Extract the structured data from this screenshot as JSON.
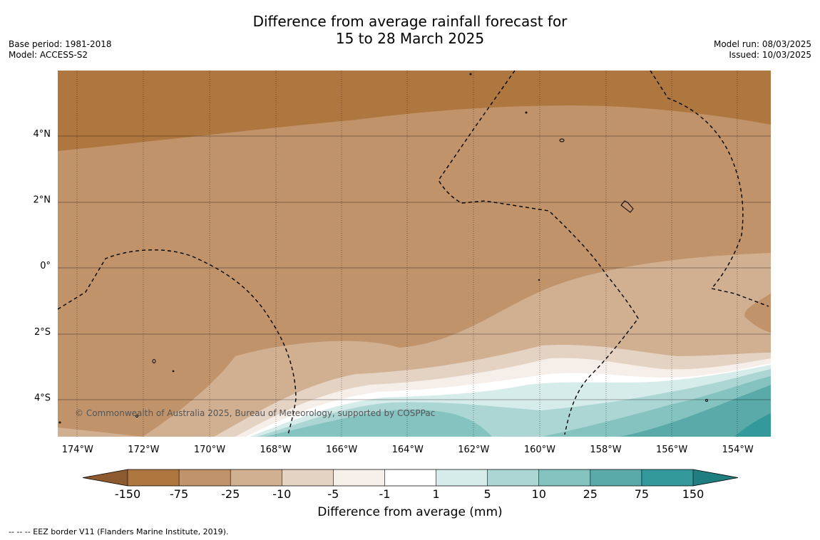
{
  "title": {
    "line1": "Difference from average rainfall forecast for",
    "line2": "15 to 28 March 2025"
  },
  "meta_left": {
    "base_period": "Base period: 1981-2018",
    "model": "Model: ACCESS-S2"
  },
  "meta_right": {
    "model_run": "Model run: 08/03/2025",
    "issued": "Issued: 10/03/2025"
  },
  "map": {
    "copyright": "© Commonwealth of Australia 2025, Bureau of Meteorology, supported by COSPPac",
    "lon_ticks": [
      {
        "value": -174,
        "label": "174°W"
      },
      {
        "value": -172,
        "label": "172°W"
      },
      {
        "value": -170,
        "label": "170°W"
      },
      {
        "value": -168,
        "label": "168°W"
      },
      {
        "value": -166,
        "label": "166°W"
      },
      {
        "value": -164,
        "label": "164°W"
      },
      {
        "value": -162,
        "label": "162°W"
      },
      {
        "value": -160,
        "label": "160°W"
      },
      {
        "value": -158,
        "label": "158°W"
      },
      {
        "value": -156,
        "label": "156°W"
      },
      {
        "value": -154,
        "label": "154°W"
      }
    ],
    "lat_ticks": [
      {
        "value": 4,
        "label": "4°N"
      },
      {
        "value": 2,
        "label": "2°N"
      },
      {
        "value": 0,
        "label": "0°"
      },
      {
        "value": -2,
        "label": "2°S"
      },
      {
        "value": -4,
        "label": "4°S"
      }
    ],
    "lon_range": [
      -174.6,
      -153.0
    ],
    "lat_range": [
      -5.2,
      5.9
    ]
  },
  "colorbar": {
    "label": "Difference from average (mm)",
    "ticks": [
      "-150",
      "-75",
      "-25",
      "-10",
      "-5",
      "-1",
      "1",
      "5",
      "10",
      "25",
      "75",
      "150"
    ],
    "colors": [
      "#8c5a2e",
      "#ad773f",
      "#c0936a",
      "#d1b092",
      "#e4d2c3",
      "#f6eee9",
      "#ffffff",
      "#d6ecea",
      "#acd6d4",
      "#84c3c0",
      "#5aaaa9",
      "#33999a",
      "#1f7f80"
    ]
  },
  "footnote": "--  --  -- EEZ border V11 (Flanders Marine Institute, 2019)."
}
